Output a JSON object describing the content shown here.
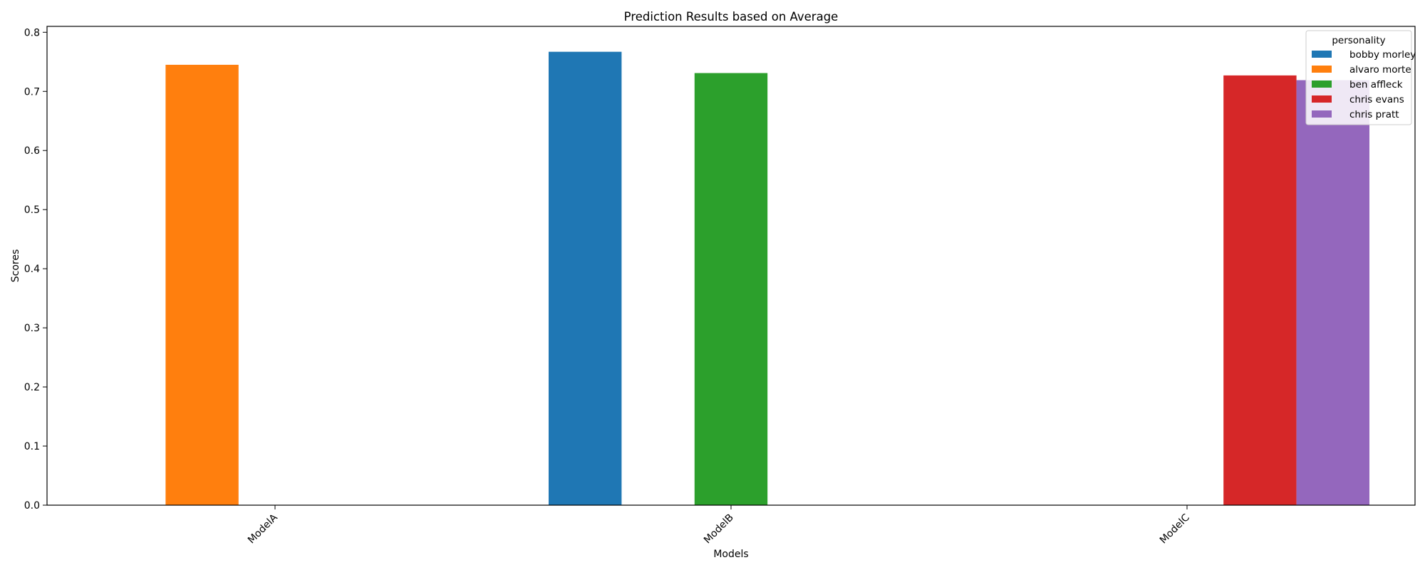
{
  "chart_data": {
    "type": "bar",
    "title": "Prediction Results based on Average",
    "xlabel": "Models",
    "ylabel": "Scores",
    "categories": [
      "ModelA",
      "ModelB",
      "ModelC"
    ],
    "ylim": [
      0,
      0.81
    ],
    "yticks": [
      0.0,
      0.1,
      0.2,
      0.3,
      0.4,
      0.5,
      0.6,
      0.7,
      0.8
    ],
    "grid": false,
    "legend": {
      "title": "personality",
      "placement": "top-right"
    },
    "series": [
      {
        "name": "bobby morley",
        "color": "#1f77b4",
        "values": [
          0,
          0.767,
          0
        ]
      },
      {
        "name": "alvaro morte",
        "color": "#ff7f0e",
        "values": [
          0.745,
          0,
          0
        ]
      },
      {
        "name": "ben affleck",
        "color": "#2ca02c",
        "values": [
          0,
          0.731,
          0
        ]
      },
      {
        "name": "chris evans",
        "color": "#d62728",
        "values": [
          0,
          0,
          0.727
        ]
      },
      {
        "name": "chris pratt",
        "color": "#9467bd",
        "values": [
          0,
          0,
          0.719
        ]
      }
    ]
  }
}
